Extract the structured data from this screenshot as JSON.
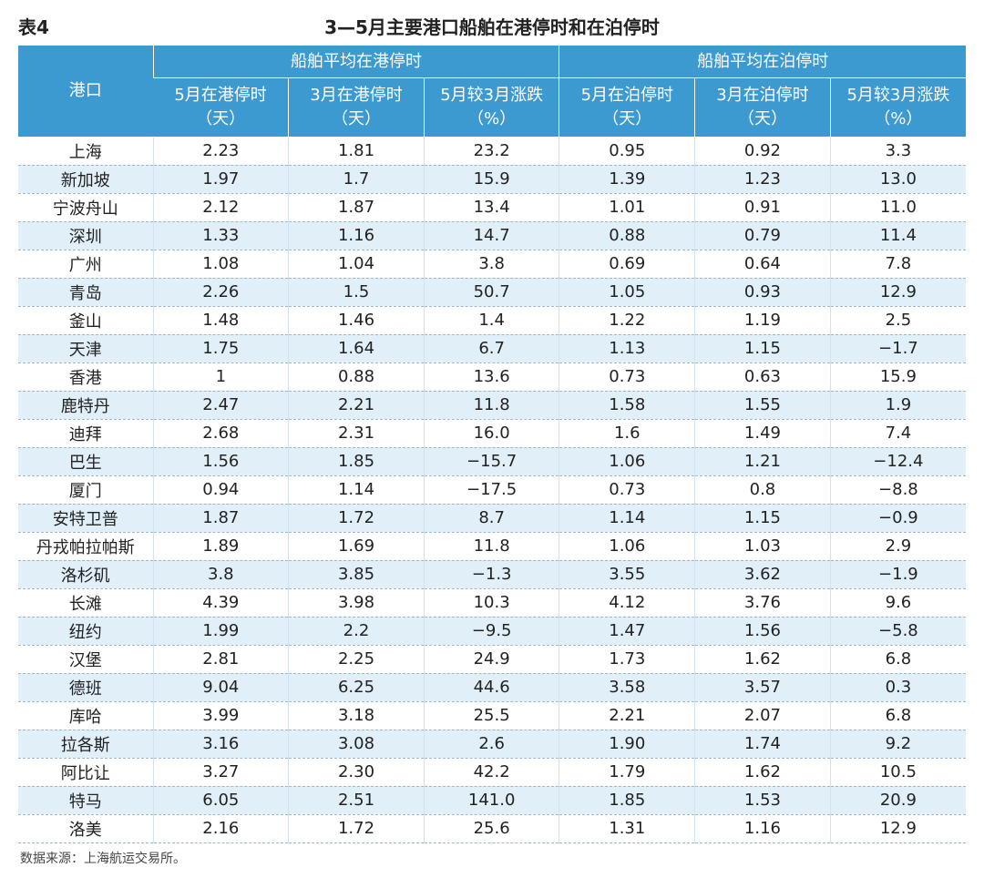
{
  "title": {
    "label": "表4",
    "text": "3—5月主要港口船舶在港停时和在泊停时"
  },
  "table": {
    "port_header": "港口",
    "groups": [
      "船舶平均在港停时",
      "船舶平均在泊停时"
    ],
    "subheaders": [
      {
        "name": "5月在港停时",
        "unit": "（天）"
      },
      {
        "name": "3月在港停时",
        "unit": "（天）"
      },
      {
        "name": "5月较3月涨跌",
        "unit": "（%）"
      },
      {
        "name": "5月在泊停时",
        "unit": "（天）"
      },
      {
        "name": "3月在泊停时",
        "unit": "（天）"
      },
      {
        "name": "5月较3月涨跌",
        "unit": "（%）"
      }
    ],
    "rows": [
      [
        "上海",
        "2.23",
        "1.81",
        "23.2",
        "0.95",
        "0.92",
        "3.3"
      ],
      [
        "新加坡",
        "1.97",
        "1.7",
        "15.9",
        "1.39",
        "1.23",
        "13.0"
      ],
      [
        "宁波舟山",
        "2.12",
        "1.87",
        "13.4",
        "1.01",
        "0.91",
        "11.0"
      ],
      [
        "深圳",
        "1.33",
        "1.16",
        "14.7",
        "0.88",
        "0.79",
        "11.4"
      ],
      [
        "广州",
        "1.08",
        "1.04",
        "3.8",
        "0.69",
        "0.64",
        "7.8"
      ],
      [
        "青岛",
        "2.26",
        "1.5",
        "50.7",
        "1.05",
        "0.93",
        "12.9"
      ],
      [
        "釜山",
        "1.48",
        "1.46",
        "1.4",
        "1.22",
        "1.19",
        "2.5"
      ],
      [
        "天津",
        "1.75",
        "1.64",
        "6.7",
        "1.13",
        "1.15",
        "−1.7"
      ],
      [
        "香港",
        "1",
        "0.88",
        "13.6",
        "0.73",
        "0.63",
        "15.9"
      ],
      [
        "鹿特丹",
        "2.47",
        "2.21",
        "11.8",
        "1.58",
        "1.55",
        "1.9"
      ],
      [
        "迪拜",
        "2.68",
        "2.31",
        "16.0",
        "1.6",
        "1.49",
        "7.4"
      ],
      [
        "巴生",
        "1.56",
        "1.85",
        "−15.7",
        "1.06",
        "1.21",
        "−12.4"
      ],
      [
        "厦门",
        "0.94",
        "1.14",
        "−17.5",
        "0.73",
        "0.8",
        "−8.8"
      ],
      [
        "安特卫普",
        "1.87",
        "1.72",
        "8.7",
        "1.14",
        "1.15",
        "−0.9"
      ],
      [
        "丹戎帕拉帕斯",
        "1.89",
        "1.69",
        "11.8",
        "1.06",
        "1.03",
        "2.9"
      ],
      [
        "洛杉矶",
        "3.8",
        "3.85",
        "−1.3",
        "3.55",
        "3.62",
        "−1.9"
      ],
      [
        "长滩",
        "4.39",
        "3.98",
        "10.3",
        "4.12",
        "3.76",
        "9.6"
      ],
      [
        "纽约",
        "1.99",
        "2.2",
        "−9.5",
        "1.47",
        "1.56",
        "−5.8"
      ],
      [
        "汉堡",
        "2.81",
        "2.25",
        "24.9",
        "1.73",
        "1.62",
        "6.8"
      ],
      [
        "德班",
        "9.04",
        "6.25",
        "44.6",
        "3.58",
        "3.57",
        "0.3"
      ],
      [
        "库哈",
        "3.99",
        "3.18",
        "25.5",
        "2.21",
        "2.07",
        "6.8"
      ],
      [
        "拉各斯",
        "3.16",
        "3.08",
        "2.6",
        "1.90",
        "1.74",
        "9.2"
      ],
      [
        "阿比让",
        "3.27",
        "2.30",
        "42.2",
        "1.79",
        "1.62",
        "10.5"
      ],
      [
        "特马",
        "6.05",
        "2.51",
        "141.0",
        "1.85",
        "1.53",
        "20.9"
      ],
      [
        "洛美",
        "2.16",
        "1.72",
        "25.6",
        "1.31",
        "1.16",
        "12.9"
      ]
    ]
  },
  "source": "数据来源：上海航运交易所。"
}
